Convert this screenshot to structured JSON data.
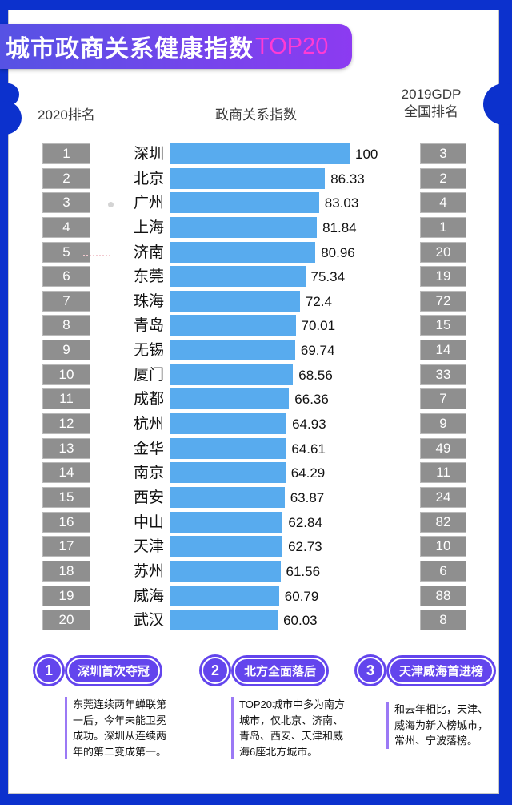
{
  "title": {
    "main": "城市政商关系健康指数",
    "highlight": "TOP20"
  },
  "columns": {
    "rank": "2020排名",
    "index": "政商关系指数",
    "gdp_line1": "2019GDP",
    "gdp_line2": "全国排名"
  },
  "chart_data": {
    "type": "bar",
    "orientation": "horizontal",
    "title": "城市政商关系健康指数TOP20",
    "value_label": "政商关系指数",
    "xlim": [
      0,
      100
    ],
    "categories": [
      "深圳",
      "北京",
      "广州",
      "上海",
      "济南",
      "东莞",
      "珠海",
      "青岛",
      "无锡",
      "厦门",
      "成都",
      "杭州",
      "金华",
      "南京",
      "西安",
      "中山",
      "天津",
      "苏州",
      "威海",
      "武汉"
    ],
    "values": [
      100,
      86.33,
      83.03,
      81.84,
      80.96,
      75.34,
      72.4,
      70.01,
      69.74,
      68.56,
      66.36,
      64.93,
      64.61,
      64.29,
      63.87,
      62.84,
      62.73,
      61.56,
      60.79,
      60.03
    ],
    "ranks_2020": [
      1,
      2,
      3,
      4,
      5,
      6,
      7,
      8,
      9,
      10,
      11,
      12,
      13,
      14,
      15,
      16,
      17,
      18,
      19,
      20
    ],
    "gdp_ranks_2019": [
      3,
      2,
      4,
      1,
      20,
      19,
      72,
      15,
      14,
      33,
      7,
      9,
      49,
      11,
      24,
      82,
      10,
      6,
      88,
      8
    ]
  },
  "footnotes": [
    {
      "num": "1",
      "title": "深圳首次夺冠",
      "text": "东莞连续两年蝉联第一后，今年未能卫冕成功。深圳从连续两年的第二变成第一。"
    },
    {
      "num": "2",
      "title": "北方全面落后",
      "text": "TOP20城市中多为南方城市，仅北京、济南、青岛、西安、天津和威海6座北方城市。"
    },
    {
      "num": "3",
      "title": "天津威海首进榜",
      "text": "和去年相比，天津、威海为新入榜城市，常州、宁波落榜。"
    }
  ],
  "colors": {
    "frame": "#0c31cd",
    "bar": "#58abee",
    "rank_box": "#8f8f8f",
    "title_gradient_start": "#5652e4",
    "title_gradient_end": "#8c3bf1",
    "title_highlight": "#ff3bd4",
    "callout": "#6345ed",
    "note_line": "#9b79f5"
  }
}
